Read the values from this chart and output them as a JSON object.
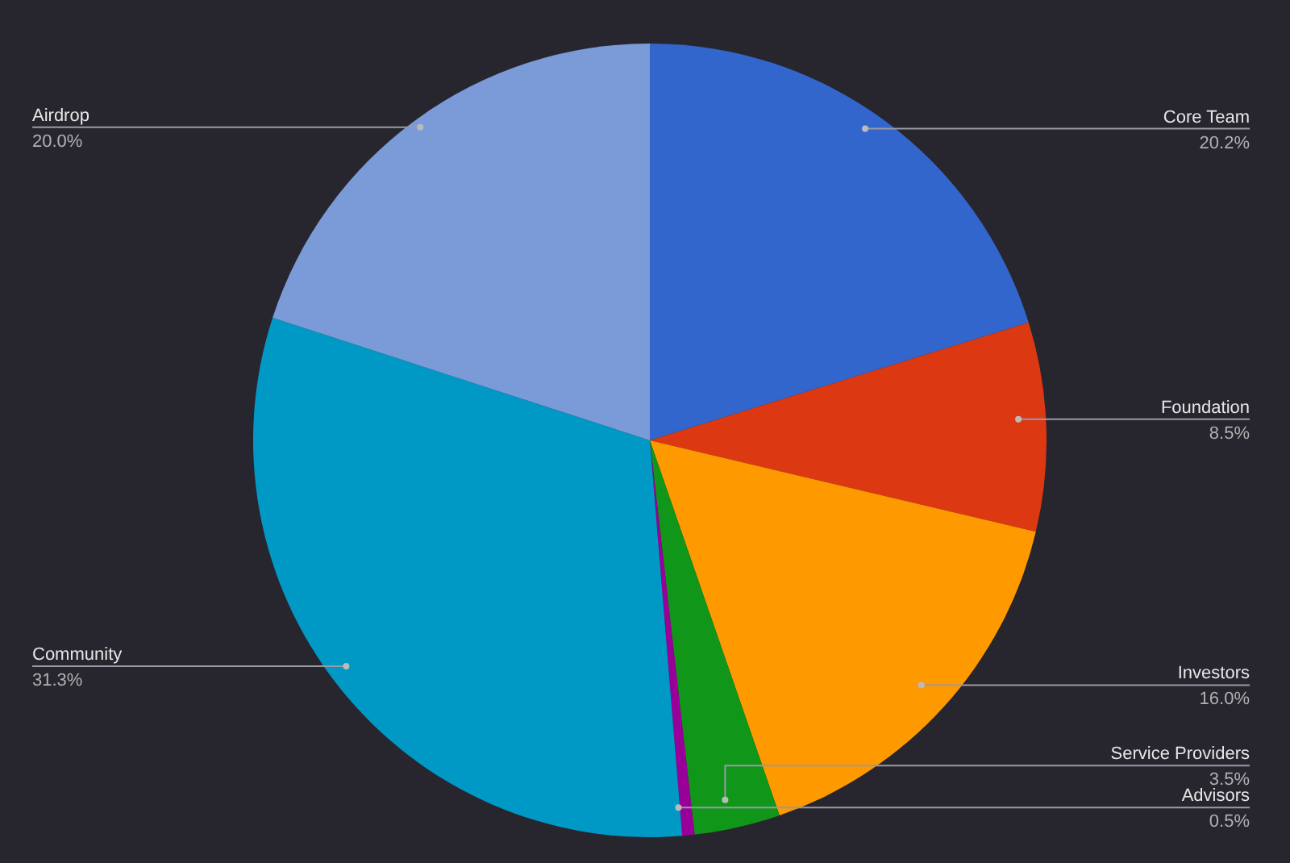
{
  "chart_data": {
    "type": "pie",
    "categories": [
      "Core Team",
      "Foundation",
      "Investors",
      "Service Providers",
      "Advisors",
      "Community",
      "Airdrop"
    ],
    "values": [
      20.2,
      8.5,
      16.0,
      3.5,
      0.5,
      31.3,
      20.0
    ],
    "value_labels": [
      "20.2%",
      "8.5%",
      "16.0%",
      "3.5%",
      "0.5%",
      "31.3%",
      "20.0%"
    ],
    "colors": [
      "#3366cc",
      "#dc3912",
      "#ff9900",
      "#109618",
      "#990099",
      "#0099c6",
      "#7b9bd8"
    ],
    "legend": false
  }
}
